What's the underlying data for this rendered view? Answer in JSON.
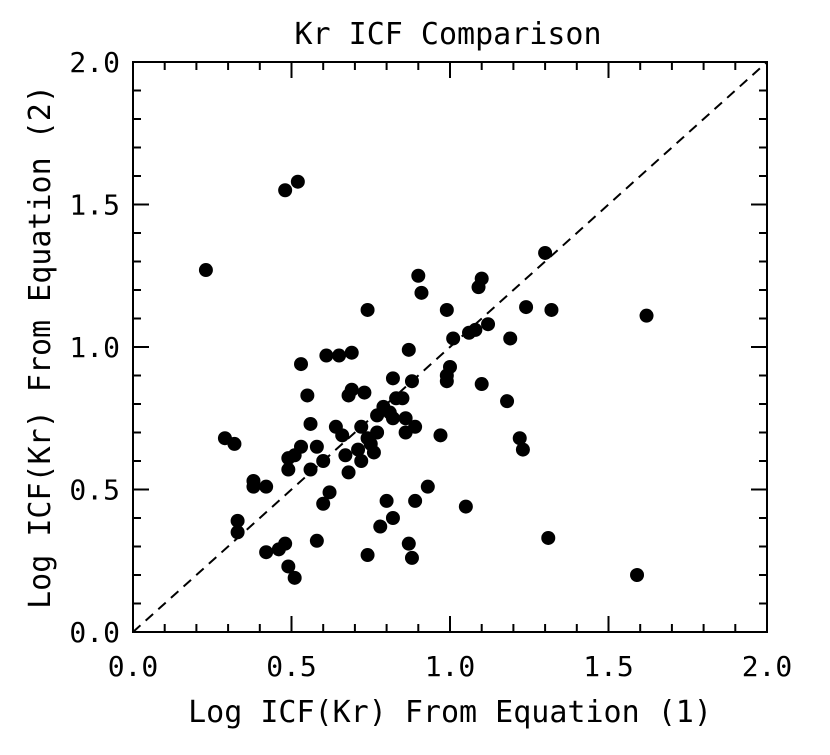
{
  "chart_data": {
    "type": "scatter",
    "title": "Kr ICF Comparison",
    "xlabel": "Log ICF(Kr) From Equation (1)",
    "ylabel": "Log ICF(Kr) From Equation (2)",
    "xlim": [
      0.0,
      2.0
    ],
    "ylim": [
      0.0,
      2.0
    ],
    "xticks": [
      "0.0",
      "0.5",
      "1.0",
      "1.5",
      "2.0"
    ],
    "yticks": [
      "0.0",
      "0.5",
      "1.0",
      "1.5",
      "2.0"
    ],
    "grid": false,
    "reference_line": {
      "style": "dashed",
      "from": [
        0.0,
        0.0
      ],
      "to": [
        2.0,
        2.0
      ]
    },
    "marker": {
      "shape": "circle",
      "color": "#000000",
      "filled": true
    },
    "series": [
      {
        "points": [
          [
            0.23,
            1.27
          ],
          [
            0.48,
            1.55
          ],
          [
            0.52,
            1.58
          ],
          [
            0.29,
            0.68
          ],
          [
            0.32,
            0.66
          ],
          [
            0.33,
            0.39
          ],
          [
            0.33,
            0.35
          ],
          [
            0.38,
            0.53
          ],
          [
            0.38,
            0.51
          ],
          [
            0.42,
            0.28
          ],
          [
            0.42,
            0.51
          ],
          [
            0.46,
            0.29
          ],
          [
            0.48,
            0.31
          ],
          [
            0.49,
            0.23
          ],
          [
            0.51,
            0.19
          ],
          [
            0.49,
            0.57
          ],
          [
            0.49,
            0.61
          ],
          [
            0.51,
            0.62
          ],
          [
            0.53,
            0.65
          ],
          [
            0.53,
            0.94
          ],
          [
            0.55,
            0.83
          ],
          [
            0.56,
            0.73
          ],
          [
            0.56,
            0.57
          ],
          [
            0.58,
            0.65
          ],
          [
            0.58,
            0.32
          ],
          [
            0.6,
            0.6
          ],
          [
            0.6,
            0.45
          ],
          [
            0.61,
            0.97
          ],
          [
            0.62,
            0.49
          ],
          [
            0.64,
            0.72
          ],
          [
            0.65,
            0.97
          ],
          [
            0.66,
            0.69
          ],
          [
            0.67,
            0.62
          ],
          [
            0.68,
            0.56
          ],
          [
            0.68,
            0.83
          ],
          [
            0.69,
            0.85
          ],
          [
            0.69,
            0.98
          ],
          [
            0.71,
            0.64
          ],
          [
            0.72,
            0.6
          ],
          [
            0.72,
            0.72
          ],
          [
            0.73,
            0.84
          ],
          [
            0.74,
            1.13
          ],
          [
            0.74,
            0.27
          ],
          [
            0.74,
            0.68
          ],
          [
            0.75,
            0.66
          ],
          [
            0.76,
            0.63
          ],
          [
            0.77,
            0.7
          ],
          [
            0.77,
            0.76
          ],
          [
            0.78,
            0.37
          ],
          [
            0.79,
            0.79
          ],
          [
            0.8,
            0.46
          ],
          [
            0.81,
            0.77
          ],
          [
            0.82,
            0.4
          ],
          [
            0.82,
            0.89
          ],
          [
            0.82,
            0.75
          ],
          [
            0.83,
            0.82
          ],
          [
            0.85,
            0.82
          ],
          [
            0.86,
            0.7
          ],
          [
            0.86,
            0.75
          ],
          [
            0.87,
            0.31
          ],
          [
            0.87,
            0.99
          ],
          [
            0.88,
            0.88
          ],
          [
            0.88,
            0.26
          ],
          [
            0.89,
            0.72
          ],
          [
            0.89,
            0.46
          ],
          [
            0.9,
            1.25
          ],
          [
            0.91,
            1.19
          ],
          [
            0.93,
            0.51
          ],
          [
            0.97,
            0.69
          ],
          [
            0.99,
            0.9
          ],
          [
            0.99,
            0.88
          ],
          [
            0.99,
            1.13
          ],
          [
            1.0,
            0.93
          ],
          [
            1.01,
            1.03
          ],
          [
            1.05,
            0.44
          ],
          [
            1.06,
            1.05
          ],
          [
            1.08,
            1.06
          ],
          [
            1.09,
            1.21
          ],
          [
            1.1,
            1.24
          ],
          [
            1.1,
            0.87
          ],
          [
            1.12,
            1.08
          ],
          [
            1.18,
            0.81
          ],
          [
            1.19,
            1.03
          ],
          [
            1.22,
            0.68
          ],
          [
            1.23,
            0.64
          ],
          [
            1.24,
            1.14
          ],
          [
            1.3,
            1.33
          ],
          [
            1.31,
            0.33
          ],
          [
            1.32,
            1.13
          ],
          [
            1.59,
            0.2
          ],
          [
            1.62,
            1.11
          ]
        ]
      }
    ]
  }
}
